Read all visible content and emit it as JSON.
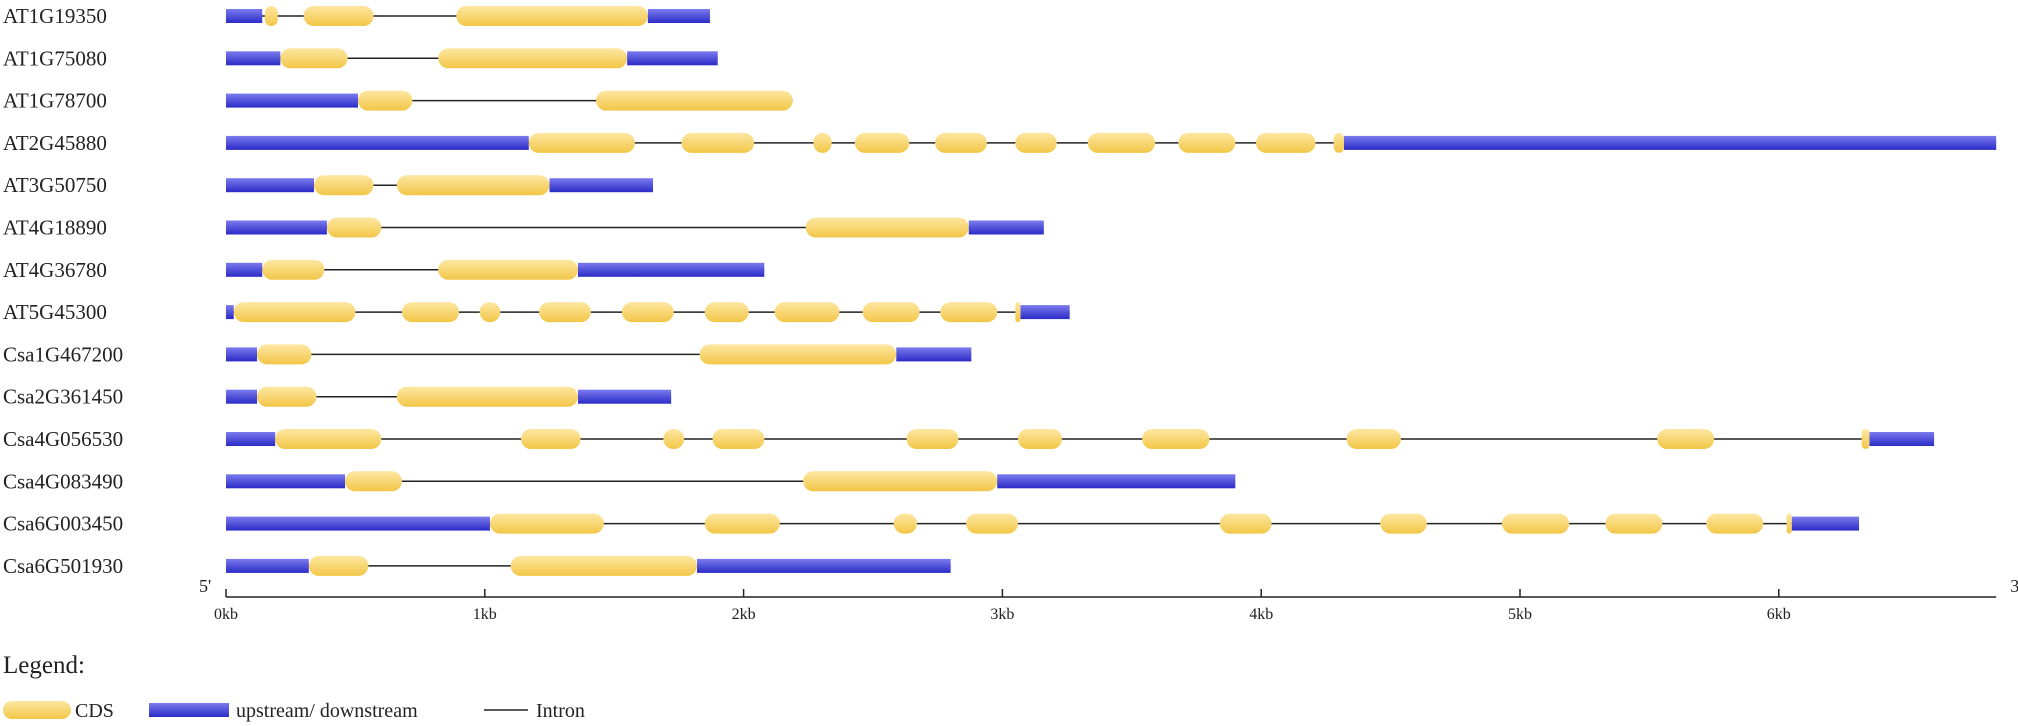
{
  "colors": {
    "cds_light": "#FDE7A2",
    "cds_dark": "#F2C647",
    "utr_light": "#7B7BEE",
    "utr_dark": "#2B2BC6",
    "intron": "#222222",
    "text": "#222222"
  },
  "axis": {
    "end5": "5'",
    "end3": "3'",
    "ticks": [
      {
        "value": 0,
        "label": "0kb"
      },
      {
        "value": 1000,
        "label": "1kb"
      },
      {
        "value": 2000,
        "label": "2kb"
      },
      {
        "value": 3000,
        "label": "3kb"
      },
      {
        "value": 4000,
        "label": "4kb"
      },
      {
        "value": 5000,
        "label": "5kb"
      },
      {
        "value": 6000,
        "label": "6kb"
      }
    ],
    "max_bp": 6840
  },
  "legend": {
    "title": "Legend:",
    "items": [
      {
        "kind": "CDS",
        "label": "CDS"
      },
      {
        "kind": "UTR",
        "label": "upstream/ downstream"
      },
      {
        "kind": "intron",
        "label": "Intron"
      }
    ]
  },
  "chart_data": {
    "type": "gene_structure",
    "unit": "bp",
    "genes": [
      {
        "name": "AT1G19350",
        "length": 1870,
        "utr": [
          [
            0,
            140
          ],
          [
            1630,
            1870
          ]
        ],
        "cds": [
          [
            150,
            200
          ],
          [
            300,
            570
          ],
          [
            890,
            1630
          ]
        ]
      },
      {
        "name": "AT1G75080",
        "length": 1900,
        "utr": [
          [
            0,
            210
          ],
          [
            1550,
            1900
          ]
        ],
        "cds": [
          [
            210,
            470
          ],
          [
            820,
            1550
          ]
        ]
      },
      {
        "name": "AT1G78700",
        "length": 2190,
        "utr": [
          [
            0,
            510
          ]
        ],
        "cds": [
          [
            510,
            720
          ],
          [
            1430,
            2190
          ]
        ]
      },
      {
        "name": "AT2G45880",
        "length": 6840,
        "utr": [
          [
            0,
            1170
          ],
          [
            4320,
            6840
          ]
        ],
        "cds": [
          [
            1170,
            1580
          ],
          [
            1760,
            2040
          ],
          [
            2270,
            2340
          ],
          [
            2430,
            2640
          ],
          [
            2740,
            2940
          ],
          [
            3050,
            3210
          ],
          [
            3330,
            3590
          ],
          [
            3680,
            3900
          ],
          [
            3980,
            4210
          ],
          [
            4280,
            4320
          ]
        ]
      },
      {
        "name": "AT3G50750",
        "length": 1650,
        "utr": [
          [
            0,
            340
          ],
          [
            1250,
            1650
          ]
        ],
        "cds": [
          [
            340,
            570
          ],
          [
            660,
            1250
          ]
        ]
      },
      {
        "name": "AT4G18890",
        "length": 3160,
        "utr": [
          [
            0,
            390
          ],
          [
            2870,
            3160
          ]
        ],
        "cds": [
          [
            390,
            600
          ],
          [
            2240,
            2870
          ]
        ]
      },
      {
        "name": "AT4G36780",
        "length": 2080,
        "utr": [
          [
            0,
            140
          ],
          [
            1360,
            2080
          ]
        ],
        "cds": [
          [
            140,
            380
          ],
          [
            820,
            1360
          ]
        ]
      },
      {
        "name": "AT5G45300",
        "length": 3260,
        "utr": [
          [
            0,
            30
          ],
          [
            3070,
            3260
          ]
        ],
        "cds": [
          [
            30,
            500
          ],
          [
            680,
            900
          ],
          [
            980,
            1060
          ],
          [
            1210,
            1410
          ],
          [
            1530,
            1730
          ],
          [
            1850,
            2020
          ],
          [
            2120,
            2370
          ],
          [
            2460,
            2680
          ],
          [
            2760,
            2980
          ],
          [
            3050,
            3070
          ]
        ]
      },
      {
        "name": "Csa1G467200",
        "length": 2880,
        "utr": [
          [
            0,
            120
          ],
          [
            2590,
            2880
          ]
        ],
        "cds": [
          [
            120,
            330
          ],
          [
            1830,
            2590
          ]
        ]
      },
      {
        "name": "Csa2G361450",
        "length": 1720,
        "utr": [
          [
            0,
            120
          ],
          [
            1360,
            1720
          ]
        ],
        "cds": [
          [
            120,
            350
          ],
          [
            660,
            1360
          ]
        ]
      },
      {
        "name": "Csa4G056530",
        "length": 6600,
        "utr": [
          [
            0,
            190
          ],
          [
            6350,
            6600
          ]
        ],
        "cds": [
          [
            190,
            600
          ],
          [
            1140,
            1370
          ],
          [
            1690,
            1770
          ],
          [
            1880,
            2080
          ],
          [
            2630,
            2830
          ],
          [
            3060,
            3230
          ],
          [
            3540,
            3800
          ],
          [
            4330,
            4540
          ],
          [
            5530,
            5750
          ],
          [
            6320,
            6350
          ]
        ]
      },
      {
        "name": "Csa4G083490",
        "length": 3900,
        "utr": [
          [
            0,
            460
          ],
          [
            2980,
            3900
          ]
        ],
        "cds": [
          [
            460,
            680
          ],
          [
            2230,
            2980
          ]
        ]
      },
      {
        "name": "Csa6G003450",
        "length": 6310,
        "utr": [
          [
            0,
            1020
          ],
          [
            6050,
            6310
          ]
        ],
        "cds": [
          [
            1020,
            1460
          ],
          [
            1850,
            2140
          ],
          [
            2580,
            2670
          ],
          [
            2860,
            3060
          ],
          [
            3840,
            4040
          ],
          [
            4460,
            4640
          ],
          [
            4930,
            5190
          ],
          [
            5330,
            5550
          ],
          [
            5720,
            5940
          ],
          [
            6030,
            6050
          ]
        ]
      },
      {
        "name": "Csa6G501930",
        "length": 2800,
        "utr": [
          [
            0,
            320
          ],
          [
            1820,
            2800
          ]
        ],
        "cds": [
          [
            320,
            550
          ],
          [
            1100,
            1820
          ]
        ]
      }
    ]
  }
}
